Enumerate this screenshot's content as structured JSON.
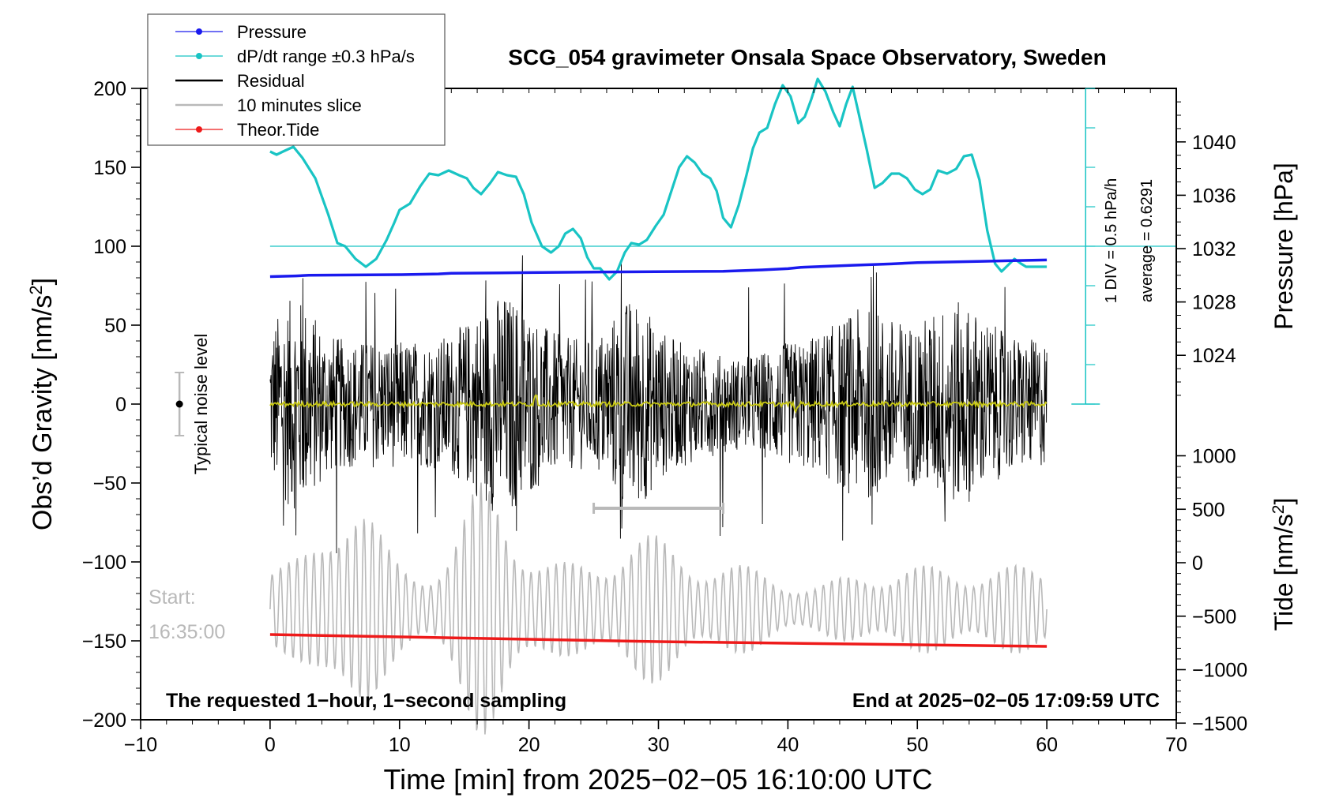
{
  "chart_data": {
    "type": "line",
    "title": "SCG_054 gravimeter Onsala Space Observatory, Sweden",
    "xlabel": "Time [min] from 2025−02−05 16:10:00 UTC",
    "ylabel_left": "Obs’d Gravity [nm/s",
    "ylabel_left_sup": "2",
    "ylabel_left_close": "]",
    "ylabel_right_top": "Pressure [hPa]",
    "ylabel_right_bottom": "Tide [nm/s",
    "ylabel_right_bottom_sup": "2",
    "ylabel_right_bottom_close": "]",
    "xlim": [
      -10,
      70
    ],
    "ylim_left": [
      -200,
      200
    ],
    "x_ticks": [
      -10,
      0,
      10,
      20,
      30,
      40,
      50,
      60,
      70
    ],
    "x_tick_labels": [
      "−10",
      "0",
      "10",
      "20",
      "30",
      "40",
      "50",
      "60",
      "70"
    ],
    "y_ticks_left": [
      200,
      150,
      100,
      50,
      0,
      -50,
      -100,
      -150,
      -200
    ],
    "y_tick_labels_left": [
      "200",
      "150",
      "100",
      "50",
      "0",
      "−50",
      "−100",
      "−150",
      "−200"
    ],
    "pressure_axis": {
      "ticks": [
        1040,
        1036,
        1032,
        1028,
        1024
      ],
      "labels": [
        "1040",
        "1036",
        "1032",
        "1028",
        "1024"
      ],
      "range_hpa": [
        1020,
        1044
      ]
    },
    "tide_axis": {
      "ticks": [
        1000,
        500,
        0,
        -500,
        -1000,
        -1500
      ],
      "labels": [
        "1000",
        "500",
        "0",
        "−500",
        "−1000",
        "−1500"
      ],
      "range": [
        -1500,
        1000
      ]
    },
    "legend": {
      "placement": "top-left",
      "entries": [
        {
          "label": "Pressure",
          "color": "#1a1aee",
          "marker": true
        },
        {
          "label": "dP/dt range ±0.3 hPa/s",
          "color": "#19c4c4",
          "marker": true
        },
        {
          "label": "Residual",
          "color": "#000000",
          "marker": false
        },
        {
          "label": "10 minutes slice",
          "color": "#b9b9b9",
          "marker": false
        },
        {
          "label": "Theor.Tide",
          "color": "#ee1a1a",
          "marker": true
        }
      ]
    },
    "series": [
      {
        "name": "Pressure",
        "color": "#1a1aee",
        "axis": "pressure_hpa",
        "x": [
          0,
          2,
          3,
          10,
          13,
          14,
          20,
          26,
          35,
          38,
          40,
          41,
          45,
          48,
          50,
          55,
          60
        ],
        "values": [
          1029.9,
          1029.95,
          1030.0,
          1030.05,
          1030.1,
          1030.15,
          1030.2,
          1030.25,
          1030.3,
          1030.4,
          1030.5,
          1030.6,
          1030.75,
          1030.85,
          1030.95,
          1031.05,
          1031.15
        ]
      },
      {
        "name": "dP/dt range ±0.3 hPa/s",
        "color": "#19c4c4",
        "axis": "left",
        "x": [
          0,
          0.5,
          1,
          1.8,
          2.5,
          3.5,
          4.5,
          5.2,
          5.8,
          6.6,
          7.4,
          8.2,
          9,
          9.6,
          10,
          10.8,
          11.6,
          12.3,
          13,
          13.8,
          14.6,
          15.2,
          15.7,
          16.3,
          17,
          17.6,
          18.3,
          19,
          19.6,
          20.2,
          21,
          21.7,
          22.3,
          22.8,
          23.4,
          24,
          24.5,
          25,
          25.5,
          26.2,
          26.8,
          27.4,
          27.9,
          28.5,
          29.1,
          29.8,
          30.4,
          31,
          31.6,
          32.2,
          32.8,
          33.4,
          34,
          34.5,
          35,
          35.6,
          36.2,
          36.8,
          37.3,
          37.8,
          38.4,
          39,
          39.6,
          40.2,
          40.8,
          41.3,
          41.8,
          42.3,
          42.9,
          43.5,
          44,
          44.5,
          45,
          45.5,
          46.1,
          46.7,
          47.3,
          48,
          48.6,
          49.2,
          49.8,
          50.4,
          51,
          51.6,
          52.3,
          53,
          53.6,
          54.2,
          54.8,
          55.4,
          56,
          56.5,
          57,
          57.5,
          58,
          58.4,
          58.8,
          59.2,
          59.6,
          60
        ],
        "values": [
          160,
          158,
          160,
          163,
          156,
          143,
          120,
          102,
          100,
          92,
          87,
          92,
          104,
          115,
          123,
          127,
          138,
          146,
          145,
          148,
          145,
          143,
          137,
          133,
          140,
          147,
          145,
          144,
          133,
          115,
          100,
          96,
          100,
          108,
          111,
          105,
          93,
          86,
          86,
          79,
          84,
          96,
          102,
          101,
          104,
          113,
          120,
          135,
          150,
          157,
          153,
          146,
          143,
          135,
          118,
          112,
          126,
          145,
          162,
          172,
          175,
          190,
          202,
          195,
          178,
          182,
          193,
          206,
          198,
          185,
          176,
          190,
          201,
          183,
          161,
          137,
          140,
          146,
          146,
          143,
          136,
          133,
          136,
          148,
          146,
          149,
          157,
          158,
          142,
          110,
          89,
          84,
          88,
          92,
          89,
          87,
          87,
          87,
          87,
          87
        ]
      },
      {
        "name": "Residual",
        "color": "#000000",
        "axis": "left",
        "x_range": [
          0,
          60
        ],
        "amplitude_range": [
          -95,
          95
        ]
      },
      {
        "name": "10 minutes slice",
        "color": "#b9b9b9",
        "axis": "left",
        "x_range": [
          0,
          60
        ],
        "center": -130,
        "amplitude_range": [
          -80,
          60
        ]
      },
      {
        "name": "Residual smoothed",
        "color": "#c8c814",
        "axis": "left",
        "x_range": [
          0,
          60
        ],
        "approx_value": 0
      },
      {
        "name": "Theor.Tide",
        "color": "#ee1a1a",
        "axis": "left",
        "x": [
          0,
          10,
          20,
          30,
          40,
          50,
          60
        ],
        "values": [
          -146,
          -147.5,
          -149,
          -150.5,
          -151.5,
          -152.5,
          -153.5
        ]
      }
    ],
    "annotations": {
      "noise_label": "Typical noise level",
      "noise_range": [
        -20,
        20
      ],
      "noise_center": 0,
      "noise_x": -7,
      "start_label_1": "Start:",
      "start_label_2": "16:35:00",
      "slice_bar_x": [
        25,
        35
      ],
      "slice_bar_y": -66,
      "bottom_left": "The requested 1−hour, 1−second sampling",
      "bottom_right": "End at 2025−02−05 17:09:59 UTC",
      "div_label": "1 DIV = 0.5 hPa/h",
      "average_label": "average = 0.6291",
      "average_line_y": 100,
      "dpdt_axis_x": 63,
      "dpdt_axis_y_range": [
        0,
        200
      ]
    }
  }
}
